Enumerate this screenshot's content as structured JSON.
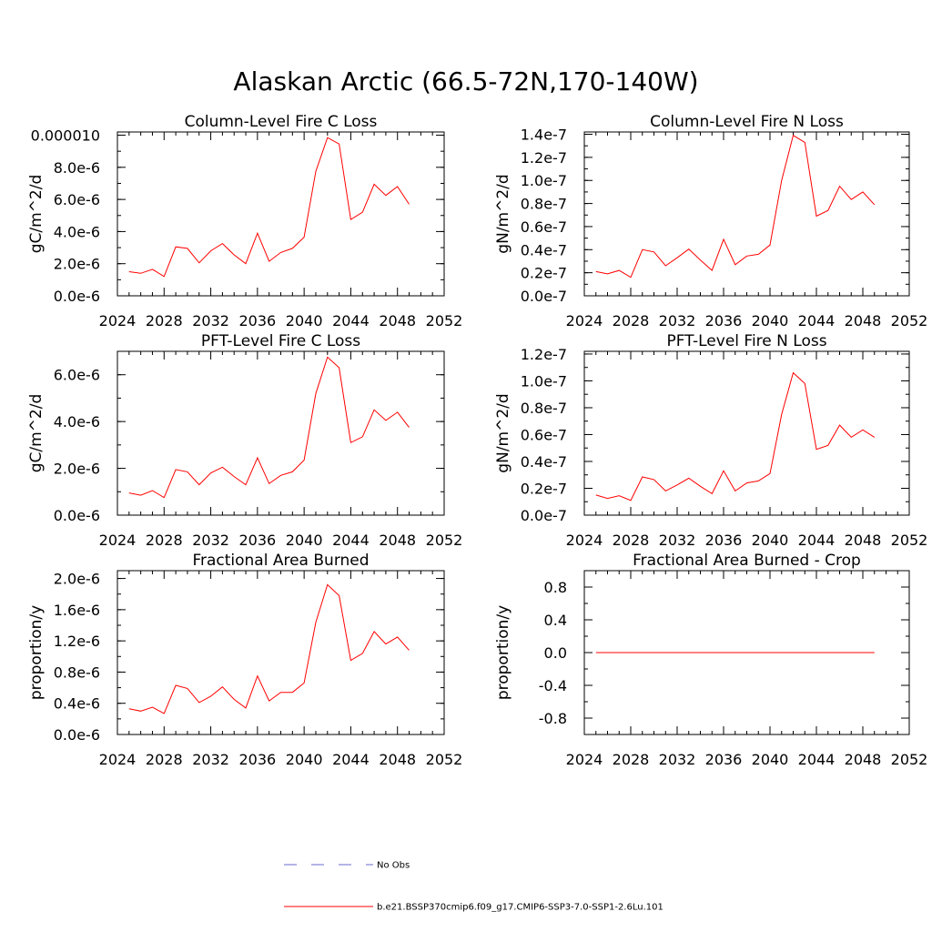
{
  "title": "Alaskan Arctic (66.5-72N,170-140W)",
  "chart_data": [
    {
      "type": "line",
      "title": "Column-Level Fire C Loss",
      "ylabel": "gC/m^2/d",
      "xlim": [
        2024,
        2052
      ],
      "xticks": [
        2024,
        2028,
        2032,
        2036,
        2040,
        2044,
        2048,
        2052
      ],
      "ylim": [
        0,
        1.02e-05
      ],
      "yticks": [
        0,
        2e-06,
        4e-06,
        6e-06,
        8e-06,
        1e-05
      ],
      "ytick_labels": [
        "0.0e-6",
        "2.0e-6",
        "4.0e-6",
        "6.0e-6",
        "8.0e-6",
        "0.000010"
      ],
      "yminor": 1e-06,
      "x": [
        2025,
        2026,
        2027,
        2028,
        2029,
        2030,
        2031,
        2032,
        2033,
        2034,
        2035,
        2036,
        2037,
        2038,
        2039,
        2040,
        2041,
        2042,
        2043,
        2044,
        2045,
        2046,
        2047,
        2048,
        2049
      ],
      "series": [
        {
          "values": [
            1.5e-06,
            1.4e-06,
            1.65e-06,
            1.2e-06,
            3.05e-06,
            2.95e-06,
            2.05e-06,
            2.8e-06,
            3.25e-06,
            2.55e-06,
            2e-06,
            3.9e-06,
            2.15e-06,
            2.7e-06,
            2.95e-06,
            3.65e-06,
            7.75e-06,
            9.85e-06,
            9.45e-06,
            4.75e-06,
            5.2e-06,
            6.95e-06,
            6.25e-06,
            6.8e-06,
            5.7e-06
          ]
        }
      ]
    },
    {
      "type": "line",
      "title": "Column-Level Fire N Loss",
      "ylabel": "gN/m^2/d",
      "xlim": [
        2024,
        2052
      ],
      "xticks": [
        2024,
        2028,
        2032,
        2036,
        2040,
        2044,
        2048,
        2052
      ],
      "ylim": [
        0,
        1.42e-07
      ],
      "yticks": [
        0,
        2e-08,
        4e-08,
        6e-08,
        8e-08,
        1e-07,
        1.2e-07,
        1.4e-07
      ],
      "ytick_labels": [
        "0.0e-7",
        "0.2e-7",
        "0.4e-7",
        "0.6e-7",
        "0.8e-7",
        "1.0e-7",
        "1.2e-7",
        "1.4e-7"
      ],
      "yminor": 1e-08,
      "x": [
        2025,
        2026,
        2027,
        2028,
        2029,
        2030,
        2031,
        2032,
        2033,
        2034,
        2035,
        2036,
        2037,
        2038,
        2039,
        2040,
        2041,
        2042,
        2043,
        2044,
        2045,
        2046,
        2047,
        2048,
        2049
      ],
      "series": [
        {
          "values": [
            2.1e-08,
            1.9e-08,
            2.2e-08,
            1.6e-08,
            4e-08,
            3.8e-08,
            2.6e-08,
            3.3e-08,
            4.05e-08,
            3.1e-08,
            2.2e-08,
            4.9e-08,
            2.7e-08,
            3.45e-08,
            3.6e-08,
            4.4e-08,
            1e-07,
            1.39e-07,
            1.33e-07,
            6.9e-08,
            7.4e-08,
            9.5e-08,
            8.35e-08,
            9e-08,
            7.9e-08
          ]
        }
      ]
    },
    {
      "type": "line",
      "title": "PFT-Level Fire C Loss",
      "ylabel": "gC/m^2/d",
      "xlim": [
        2024,
        2052
      ],
      "xticks": [
        2024,
        2028,
        2032,
        2036,
        2040,
        2044,
        2048,
        2052
      ],
      "ylim": [
        0,
        7e-06
      ],
      "yticks": [
        0,
        2e-06,
        4e-06,
        6e-06
      ],
      "ytick_labels": [
        "0.0e-6",
        "2.0e-6",
        "4.0e-6",
        "6.0e-6"
      ],
      "yminor": 1e-06,
      "x": [
        2025,
        2026,
        2027,
        2028,
        2029,
        2030,
        2031,
        2032,
        2033,
        2034,
        2035,
        2036,
        2037,
        2038,
        2039,
        2040,
        2041,
        2042,
        2043,
        2044,
        2045,
        2046,
        2047,
        2048,
        2049
      ],
      "series": [
        {
          "values": [
            9.5e-07,
            8.5e-07,
            1.05e-06,
            7.5e-07,
            1.95e-06,
            1.85e-06,
            1.3e-06,
            1.8e-06,
            2.05e-06,
            1.65e-06,
            1.3e-06,
            2.45e-06,
            1.35e-06,
            1.7e-06,
            1.85e-06,
            2.35e-06,
            5.2e-06,
            6.75e-06,
            6.3e-06,
            3.1e-06,
            3.35e-06,
            4.5e-06,
            4.05e-06,
            4.4e-06,
            3.75e-06
          ]
        }
      ]
    },
    {
      "type": "line",
      "title": "PFT-Level Fire N Loss",
      "ylabel": "gN/m^2/d",
      "xlim": [
        2024,
        2052
      ],
      "xticks": [
        2024,
        2028,
        2032,
        2036,
        2040,
        2044,
        2048,
        2052
      ],
      "ylim": [
        0,
        1.22e-07
      ],
      "yticks": [
        0,
        2e-08,
        4e-08,
        6e-08,
        8e-08,
        1e-07,
        1.2e-07
      ],
      "ytick_labels": [
        "0.0e-7",
        "0.2e-7",
        "0.4e-7",
        "0.6e-7",
        "0.8e-7",
        "1.0e-7",
        "1.2e-7"
      ],
      "yminor": 1e-08,
      "x": [
        2025,
        2026,
        2027,
        2028,
        2029,
        2030,
        2031,
        2032,
        2033,
        2034,
        2035,
        2036,
        2037,
        2038,
        2039,
        2040,
        2041,
        2042,
        2043,
        2044,
        2045,
        2046,
        2047,
        2048,
        2049
      ],
      "series": [
        {
          "values": [
            1.5e-08,
            1.25e-08,
            1.45e-08,
            1.1e-08,
            2.85e-08,
            2.65e-08,
            1.8e-08,
            2.25e-08,
            2.75e-08,
            2.15e-08,
            1.6e-08,
            3.3e-08,
            1.8e-08,
            2.4e-08,
            2.55e-08,
            3.1e-08,
            7.5e-08,
            1.06e-07,
            9.8e-08,
            4.9e-08,
            5.2e-08,
            6.7e-08,
            5.8e-08,
            6.35e-08,
            5.8e-08
          ]
        }
      ]
    },
    {
      "type": "line",
      "title": "Fractional Area Burned",
      "ylabel": "proportion/y",
      "xlim": [
        2024,
        2052
      ],
      "xticks": [
        2024,
        2028,
        2032,
        2036,
        2040,
        2044,
        2048,
        2052
      ],
      "ylim": [
        0,
        2.1e-06
      ],
      "yticks": [
        0,
        4e-07,
        8e-07,
        1.2e-06,
        1.6e-06,
        2e-06
      ],
      "ytick_labels": [
        "0.0e-6",
        "0.4e-6",
        "0.8e-6",
        "1.2e-6",
        "1.6e-6",
        "2.0e-6"
      ],
      "yminor": 2e-07,
      "x": [
        2025,
        2026,
        2027,
        2028,
        2029,
        2030,
        2031,
        2032,
        2033,
        2034,
        2035,
        2036,
        2037,
        2038,
        2039,
        2040,
        2041,
        2042,
        2043,
        2044,
        2045,
        2046,
        2047,
        2048,
        2049
      ],
      "series": [
        {
          "values": [
            3.3e-07,
            3e-07,
            3.5e-07,
            2.7e-07,
            6.3e-07,
            5.9e-07,
            4.1e-07,
            4.9e-07,
            6.1e-07,
            4.5e-07,
            3.4e-07,
            7.5e-07,
            4.3e-07,
            5.4e-07,
            5.4e-07,
            6.6e-07,
            1.44e-06,
            1.92e-06,
            1.78e-06,
            9.5e-07,
            1.04e-06,
            1.32e-06,
            1.16e-06,
            1.25e-06,
            1.08e-06
          ]
        }
      ]
    },
    {
      "type": "line",
      "title": "Fractional Area Burned - Crop",
      "ylabel": "proportion/y",
      "xlim": [
        2024,
        2052
      ],
      "xticks": [
        2024,
        2028,
        2032,
        2036,
        2040,
        2044,
        2048,
        2052
      ],
      "ylim": [
        -1,
        1
      ],
      "yticks": [
        -0.8,
        -0.4,
        0,
        0.4,
        0.8
      ],
      "ytick_labels": [
        "-0.8",
        "-0.4",
        "0.0",
        "0.4",
        "0.8"
      ],
      "yminor": 0.2,
      "x": [
        2025,
        2026,
        2027,
        2028,
        2029,
        2030,
        2031,
        2032,
        2033,
        2034,
        2035,
        2036,
        2037,
        2038,
        2039,
        2040,
        2041,
        2042,
        2043,
        2044,
        2045,
        2046,
        2047,
        2048,
        2049
      ],
      "series": [
        {
          "values": [
            0,
            0,
            0,
            0,
            0,
            0,
            0,
            0,
            0,
            0,
            0,
            0,
            0,
            0,
            0,
            0,
            0,
            0,
            0,
            0,
            0,
            0,
            0,
            0,
            0
          ]
        }
      ]
    }
  ],
  "legend": [
    {
      "label": "No Obs",
      "color": "#6b6bd1",
      "dash": "dashed"
    },
    {
      "label": "b.e21.BSSP370cmip6.f09_g17.CMIP6-SSP3-7.0-SSP1-2.6Lu.101",
      "color": "#ff0000",
      "dash": "solid"
    }
  ]
}
